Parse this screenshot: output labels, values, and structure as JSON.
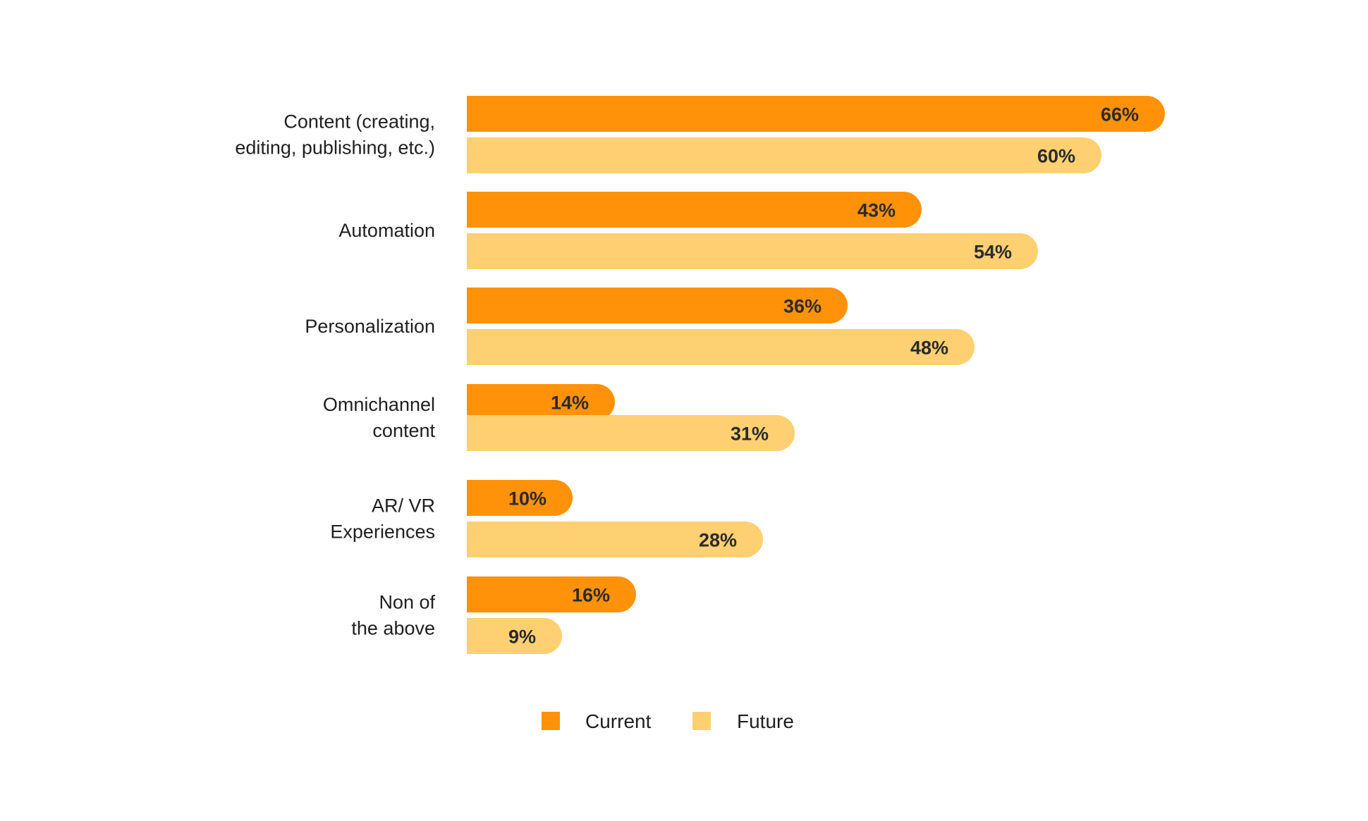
{
  "chart_data": {
    "type": "bar",
    "orientation": "horizontal",
    "categories": [
      [
        "Content (creating,",
        "editing, publishing, etc.)"
      ],
      [
        "Automation"
      ],
      [
        "Personalization"
      ],
      [
        "Omnichannel",
        "content"
      ],
      [
        "AR/ VR",
        "Experiences"
      ],
      [
        "Non of",
        "the above"
      ]
    ],
    "series": [
      {
        "name": "Current",
        "color": "#FF9209",
        "values": [
          66,
          43,
          36,
          14,
          10,
          16
        ],
        "labels": [
          "66%",
          "43%",
          "36%",
          "14%",
          "10%",
          "16%"
        ]
      },
      {
        "name": "Future",
        "color": "#FFD071",
        "values": [
          60,
          54,
          48,
          31,
          28,
          9
        ],
        "labels": [
          "60%",
          "54%",
          "48%",
          "31%",
          "28%",
          "9%"
        ]
      }
    ],
    "value_unit": "%",
    "xlim": [
      0,
      66
    ],
    "grid": false,
    "legend_position": "bottom"
  }
}
